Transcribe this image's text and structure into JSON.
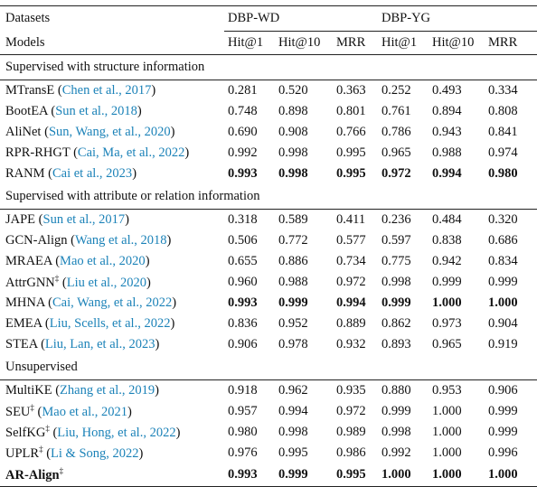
{
  "header": {
    "group_label": "Datasets",
    "groups": [
      "DBP-WD",
      "DBP-YG"
    ],
    "row_label": "Models",
    "metrics": [
      "Hit@1",
      "Hit@10",
      "MRR",
      "Hit@1",
      "Hit@10",
      "MRR"
    ]
  },
  "sections": [
    {
      "title": "Supervised with structure information",
      "rows": [
        {
          "model": "MTransE",
          "cite": "Chen et al., 2017",
          "values": [
            "0.281",
            "0.520",
            "0.363",
            "0.252",
            "0.493",
            "0.334"
          ]
        },
        {
          "model": "BootEA",
          "cite": "Sun et al., 2018",
          "values": [
            "0.748",
            "0.898",
            "0.801",
            "0.761",
            "0.894",
            "0.808"
          ]
        },
        {
          "model": "AliNet",
          "cite": "Sun, Wang, et al., 2020",
          "values": [
            "0.690",
            "0.908",
            "0.766",
            "0.786",
            "0.943",
            "0.841"
          ]
        },
        {
          "model": "RPR-RHGT",
          "cite": "Cai, Ma, et al., 2022",
          "values": [
            "0.992",
            "0.998",
            "0.995",
            "0.965",
            "0.988",
            "0.974"
          ]
        },
        {
          "model": "RANM",
          "cite": "Cai et al., 2023",
          "values": [
            "0.993",
            "0.998",
            "0.995",
            "0.972",
            "0.994",
            "0.980"
          ],
          "bold_values": true
        }
      ]
    },
    {
      "title": "Supervised with attribute or relation information",
      "rows": [
        {
          "model": "JAPE",
          "cite": "Sun et al., 2017",
          "values": [
            "0.318",
            "0.589",
            "0.411",
            "0.236",
            "0.484",
            "0.320"
          ]
        },
        {
          "model": "GCN-Align",
          "cite": "Wang et al., 2018",
          "values": [
            "0.506",
            "0.772",
            "0.577",
            "0.597",
            "0.838",
            "0.686"
          ]
        },
        {
          "model": "MRAEA",
          "cite": "Mao et al., 2020",
          "values": [
            "0.655",
            "0.886",
            "0.734",
            "0.775",
            "0.942",
            "0.834"
          ]
        },
        {
          "model": "AttrGNN",
          "mark": "‡",
          "cite": "Liu et al., 2020",
          "values": [
            "0.960",
            "0.988",
            "0.972",
            "0.998",
            "0.999",
            "0.999"
          ]
        },
        {
          "model": "MHNA",
          "cite": "Cai, Wang, et al., 2022",
          "values": [
            "0.993",
            "0.999",
            "0.994",
            "0.999",
            "1.000",
            "1.000"
          ],
          "bold_values": true
        },
        {
          "model": "EMEA",
          "cite": "Liu, Scells, et al., 2022",
          "values": [
            "0.836",
            "0.952",
            "0.889",
            "0.862",
            "0.973",
            "0.904"
          ]
        },
        {
          "model": "STEA",
          "cite": "Liu, Lan, et al., 2023",
          "values": [
            "0.906",
            "0.978",
            "0.932",
            "0.893",
            "0.965",
            "0.919"
          ]
        }
      ]
    },
    {
      "title": "Unsupervised",
      "rows": [
        {
          "model": "MultiKE",
          "cite": "Zhang et al., 2019",
          "values": [
            "0.918",
            "0.962",
            "0.935",
            "0.880",
            "0.953",
            "0.906"
          ]
        },
        {
          "model": "SEU",
          "mark": "‡",
          "cite": "Mao et al., 2021",
          "values": [
            "0.957",
            "0.994",
            "0.972",
            "0.999",
            "1.000",
            "0.999"
          ]
        },
        {
          "model": "SelfKG",
          "mark": "‡",
          "cite": "Liu, Hong, et al., 2022",
          "values": [
            "0.980",
            "0.998",
            "0.989",
            "0.998",
            "1.000",
            "0.999"
          ]
        },
        {
          "model": "UPLR",
          "mark": "‡",
          "cite": "Li & Song, 2022",
          "values": [
            "0.976",
            "0.995",
            "0.986",
            "0.992",
            "1.000",
            "0.996"
          ]
        },
        {
          "model": "AR-Align",
          "mark": "‡",
          "values": [
            "0.993",
            "0.999",
            "0.995",
            "1.000",
            "1.000",
            "1.000"
          ],
          "bold_values": true,
          "bold_model": true
        }
      ]
    }
  ]
}
